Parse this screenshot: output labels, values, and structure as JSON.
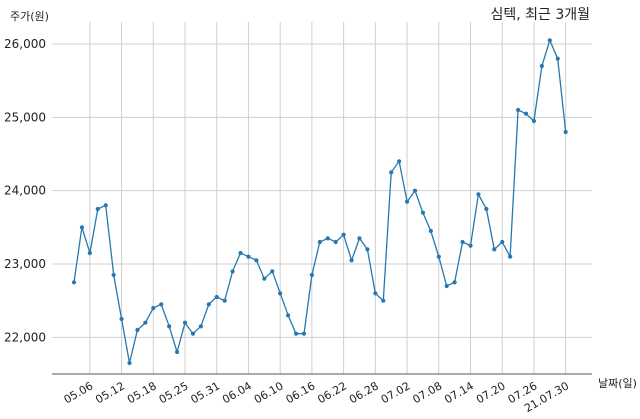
{
  "chart_data": {
    "type": "line",
    "title": "심텍, 최근 3개월",
    "ylabel": "주가(원)",
    "xlabel": "날짜(일)",
    "ylim": [
      21500,
      26300
    ],
    "yticks": [
      22000,
      23000,
      24000,
      25000,
      26000
    ],
    "ytick_labels": [
      "22,000",
      "23,000",
      "24,000",
      "25,000",
      "26,000"
    ],
    "grid": true,
    "line_color": "#2878b0",
    "xtick_labels": [
      "05.06",
      "05.12",
      "05.18",
      "05.25",
      "05.31",
      "06.04",
      "06.10",
      "06.16",
      "06.22",
      "06.28",
      "07.02",
      "07.08",
      "07.14",
      "07.20",
      "07.26",
      "21.07.30"
    ],
    "xtick_indices": [
      2,
      6,
      10,
      14,
      18,
      22,
      26,
      30,
      34,
      38,
      42,
      46,
      50,
      54,
      58,
      62
    ],
    "series": [
      {
        "values": [
          22750,
          23500,
          23150,
          23750,
          23800,
          22850,
          22250,
          21650,
          22100,
          22200,
          22400,
          22450,
          22150,
          21800,
          22200,
          22050,
          22150,
          22450,
          22550,
          22500,
          22900,
          23150,
          23100,
          23050,
          22800,
          22900,
          22600,
          22300,
          22050,
          22050,
          22850,
          23300,
          23350,
          23300,
          23400,
          23050,
          23350,
          23200,
          22600,
          22500,
          24250,
          24400,
          23850,
          24000,
          23700,
          23450,
          23100,
          22700,
          22750,
          23300,
          23250,
          23950,
          23750,
          23200,
          23300,
          23100,
          25100,
          25050,
          24950,
          25700,
          26050,
          25800,
          24800
        ]
      }
    ]
  }
}
